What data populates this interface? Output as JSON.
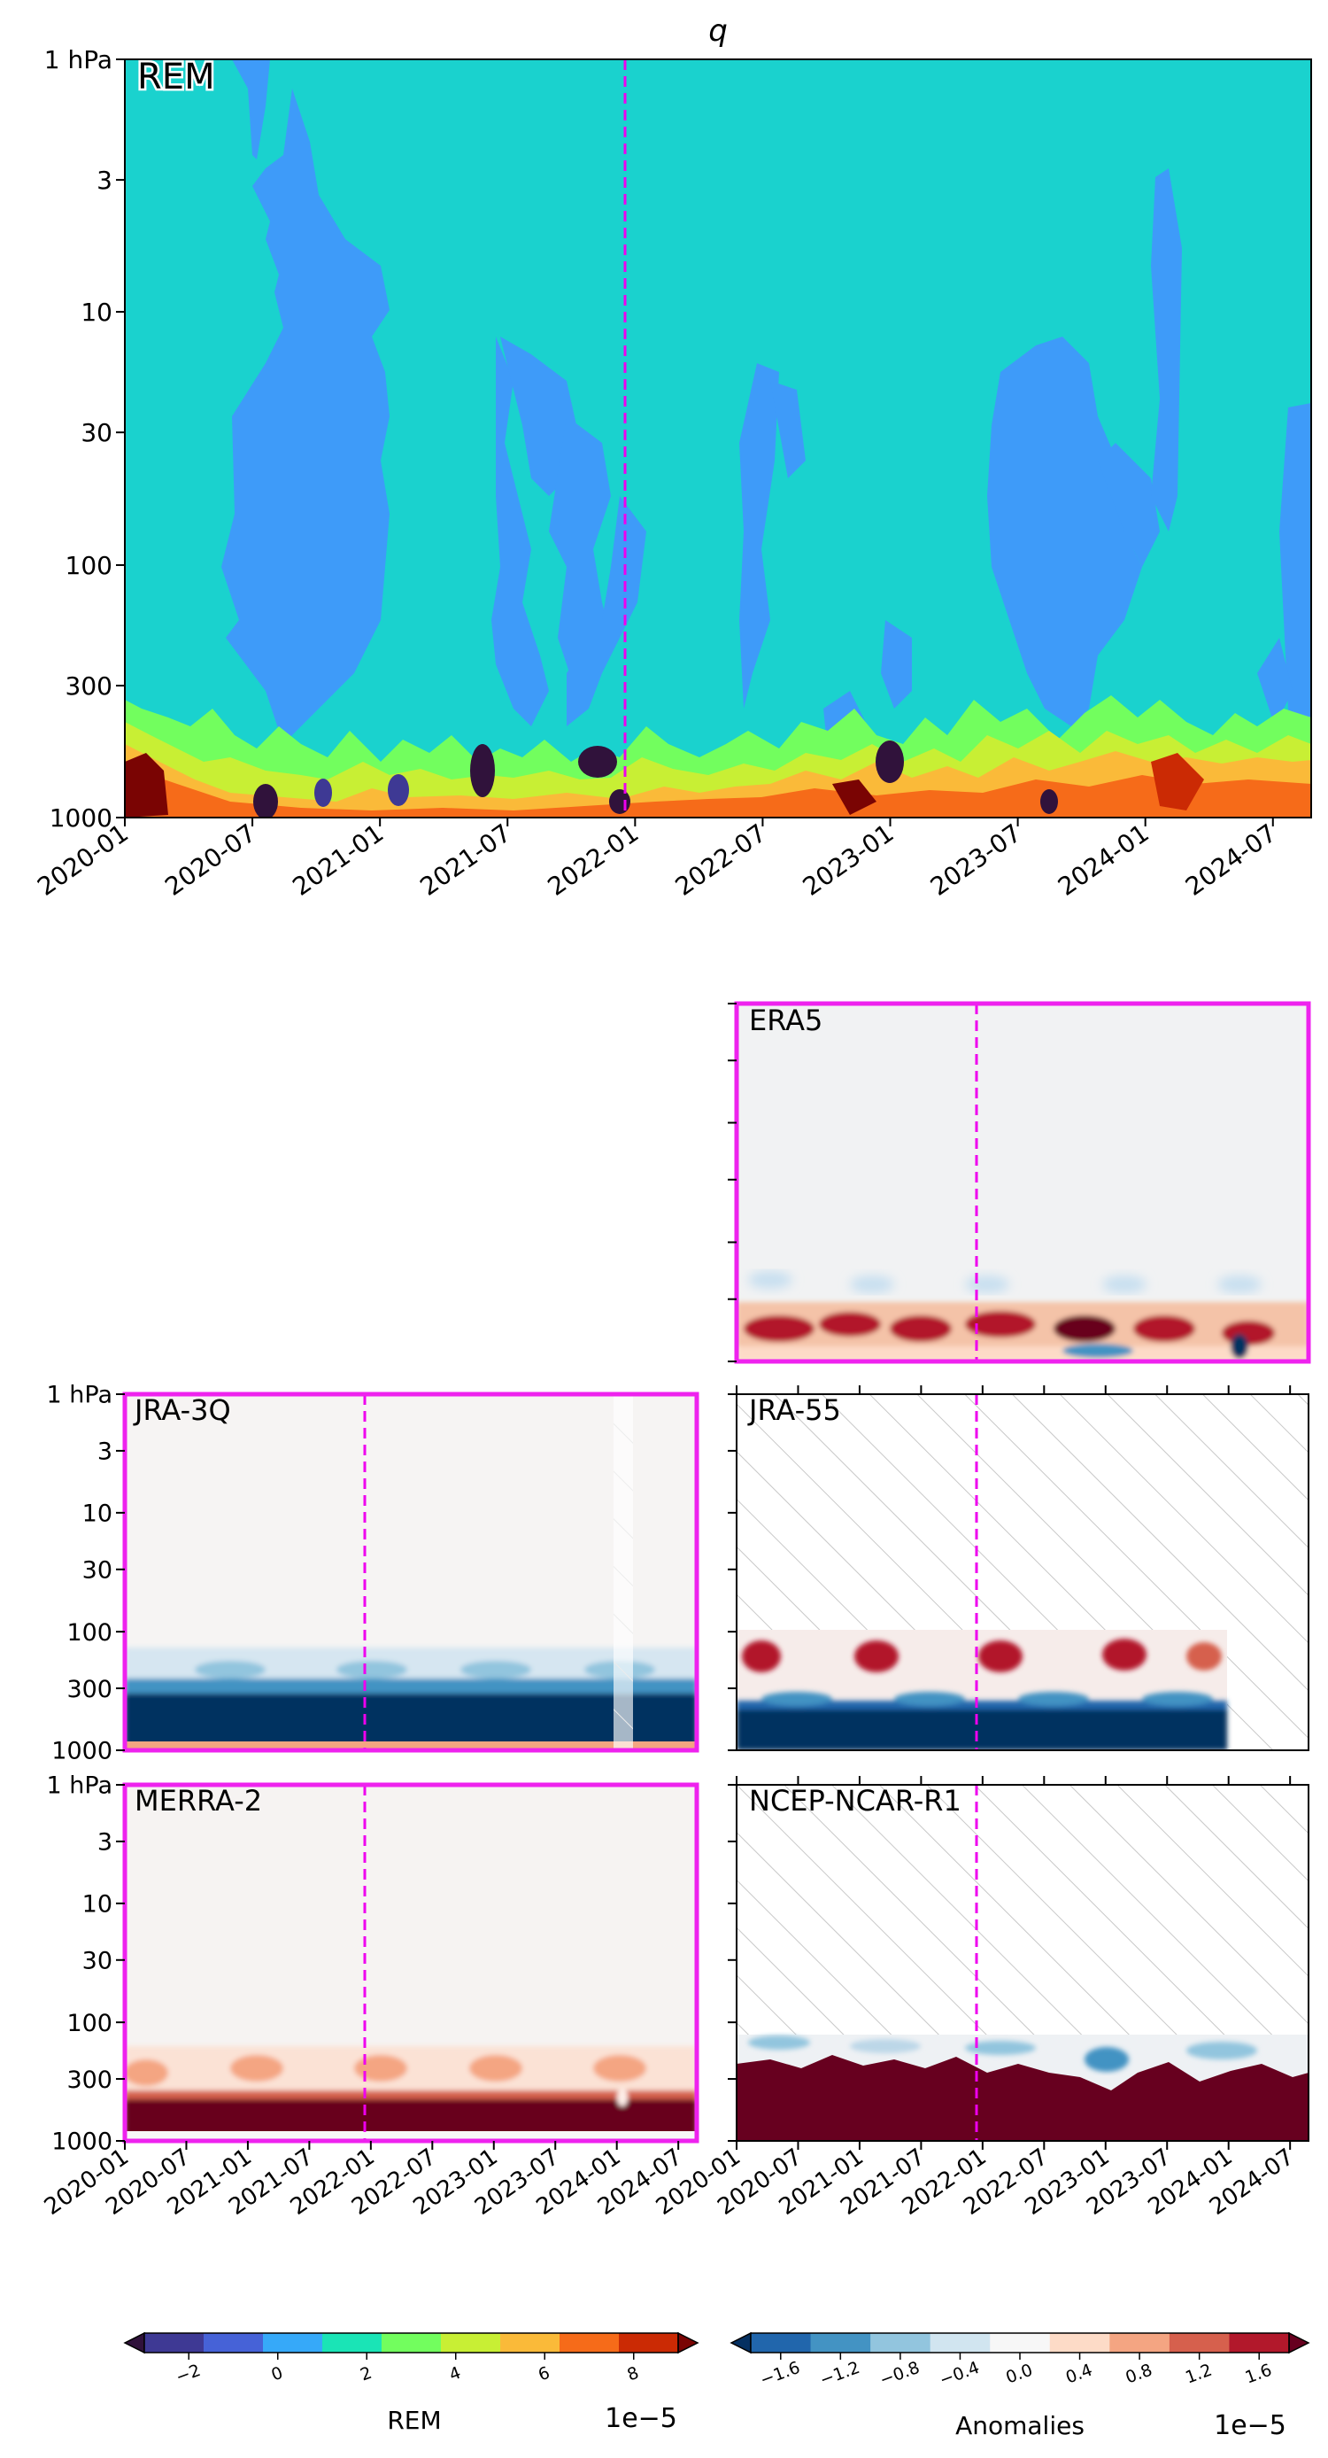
{
  "title": "q",
  "dates": [
    "2020-01",
    "2020-07",
    "2021-01",
    "2021-07",
    "2022-01",
    "2022-07",
    "2023-01",
    "2023-07",
    "2024-01",
    "2024-07"
  ],
  "levels": [
    "1 hPa",
    "3",
    "10",
    "30",
    "100",
    "300",
    "1000"
  ],
  "main_panel": {
    "label": "REM"
  },
  "panels": [
    {
      "label": "ERA5"
    },
    {
      "label": "JRA-3Q"
    },
    {
      "label": "JRA-55"
    },
    {
      "label": "MERRA-2"
    },
    {
      "label": "NCEP-NCAR-R1"
    }
  ],
  "colorbars": {
    "rem": {
      "label": "REM",
      "scale": "1e−5",
      "ticks": [
        "−2",
        "0",
        "2",
        "4",
        "6",
        "8"
      ],
      "colors": [
        "#30123b",
        "#3e3994",
        "#4662d7",
        "#36a9f9",
        "#1ae4b6",
        "#72fe5e",
        "#c8ef34",
        "#faba39",
        "#f66b19",
        "#cb2a04",
        "#7a0403"
      ]
    },
    "anom": {
      "label": "Anomalies",
      "scale": "1e−5",
      "ticks": [
        "−1.6",
        "−1.2",
        "−0.8",
        "−0.4",
        "0.0",
        "0.4",
        "0.8",
        "1.2",
        "1.6"
      ],
      "colors": [
        "#053061",
        "#2166ac",
        "#4393c3",
        "#92c5de",
        "#d1e5f0",
        "#f7f7f7",
        "#fddbc7",
        "#f4a582",
        "#d6604d",
        "#b2182b",
        "#67001f"
      ]
    }
  },
  "chart_data": [
    {
      "type": "heatmap",
      "title": "q",
      "variable": "q",
      "dataset": "REM",
      "x_range": [
        "2020-01",
        "2024-09"
      ],
      "x_ticks": [
        "2020-01",
        "2020-07",
        "2021-01",
        "2021-07",
        "2022-01",
        "2022-07",
        "2023-01",
        "2023-07",
        "2024-01",
        "2024-07"
      ],
      "y_scale": "log",
      "y_ticks_hPa": [
        1,
        3,
        10,
        30,
        100,
        300,
        1000
      ],
      "y_range_hPa": [
        1000,
        1
      ],
      "reference_line_x": "2021-12",
      "colorbar": {
        "label": "REM",
        "scale": "1e-5",
        "range": [
          -3,
          9
        ],
        "ticks": [
          -2,
          0,
          2,
          4,
          6,
          8
        ]
      },
      "description": "Values near 0 above 300 hPa; large positive values (up to ~9e-5) below 300 hPa near the surface, seasonal peaks."
    },
    {
      "type": "heatmap",
      "dataset": "ERA5",
      "colorbar": {
        "label": "Anomalies",
        "scale": "1e-5",
        "range": [
          -1.8,
          1.8
        ],
        "ticks": [
          -1.6,
          -1.2,
          -0.8,
          -0.4,
          0.0,
          0.4,
          0.8,
          1.2,
          1.6
        ]
      },
      "reference_line_x": "2021-12",
      "description": "Near-zero anomalies aloft; positive and mixed anomalies in the lowest layers."
    },
    {
      "type": "heatmap",
      "dataset": "JRA-3Q",
      "reference_line_x": "2021-12",
      "missing_data": [
        "2024-02 to 2024-03"
      ],
      "description": "Strong negative anomalies between ~300 and 1000 hPa."
    },
    {
      "type": "heatmap",
      "dataset": "JRA-55",
      "reference_line_x": "2021-12",
      "available": {
        "x_range": [
          "2020-01",
          "2023-12"
        ],
        "y_top_hPa": 100
      },
      "description": "Positive seasonal anomalies near 100-200 hPa; strong negative anomalies below 300 hPa; hatched where missing."
    },
    {
      "type": "heatmap",
      "dataset": "MERRA-2",
      "reference_line_x": "2021-12",
      "description": "Positive anomalies below ~200 hPa, strongest near the surface."
    },
    {
      "type": "heatmap",
      "dataset": "NCEP-NCAR-R1",
      "reference_line_x": "2021-12",
      "available": {
        "y_top_hPa": 300
      },
      "description": "Only levels below 300 hPa available; strong positive anomalies; hatched above."
    }
  ]
}
